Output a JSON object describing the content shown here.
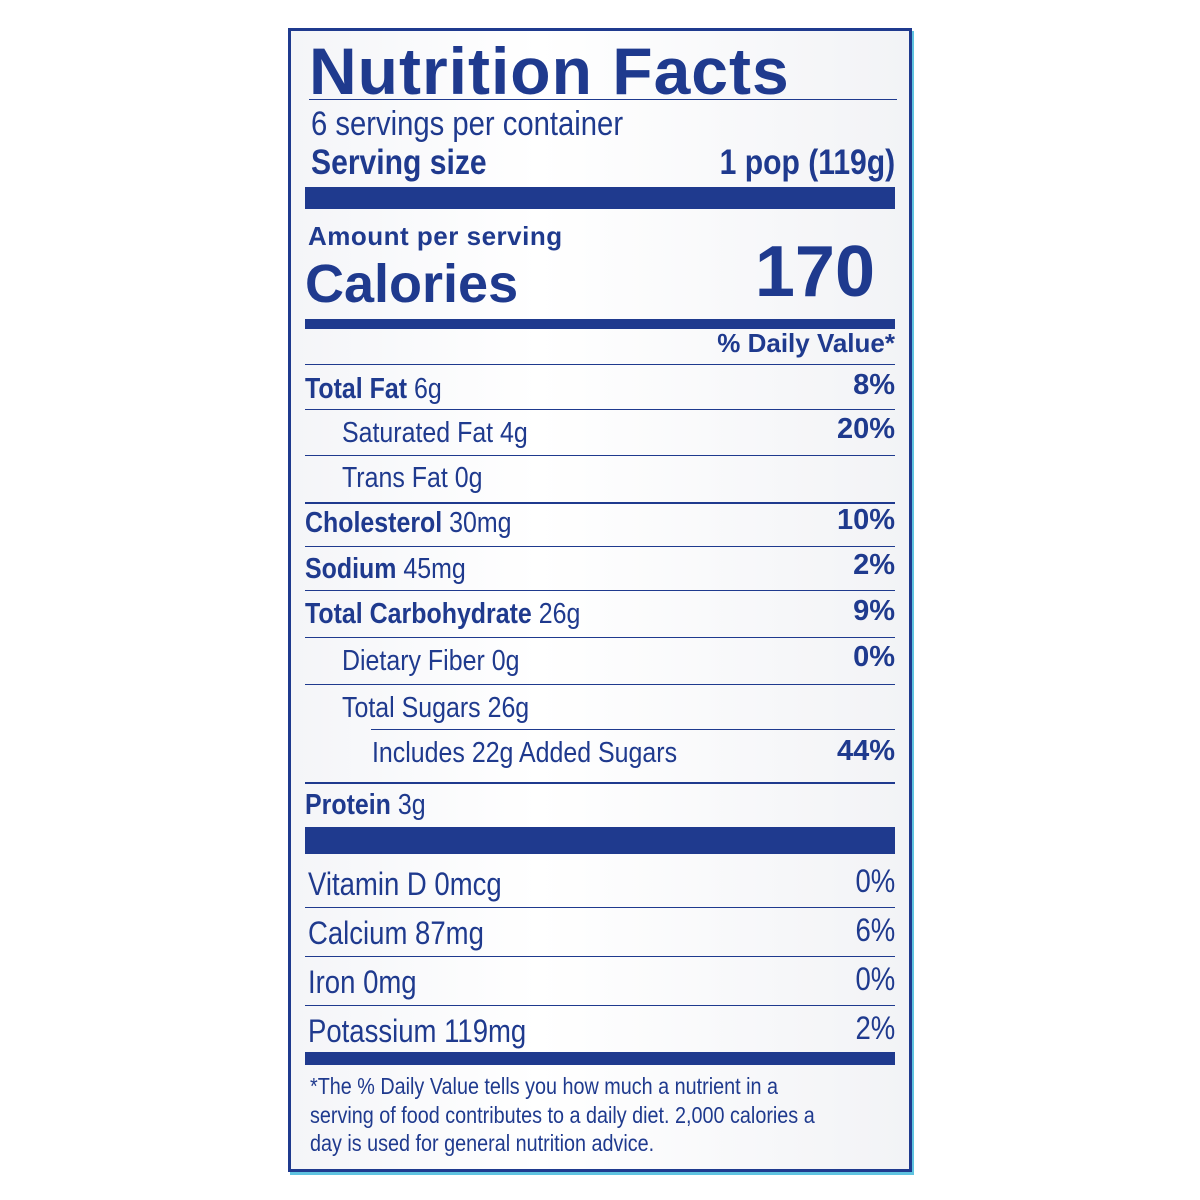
{
  "title": "Nutrition Facts",
  "servings_per_container": "6 servings per container",
  "serving_size": {
    "label": "Serving size",
    "value": "1 pop (119g)"
  },
  "amount_per_serving": "Amount per serving",
  "calories": {
    "label": "Calories",
    "value": "170"
  },
  "daily_value_header": "% Daily Value*",
  "nutrients": [
    {
      "name": "Total Fat",
      "amount": "6g",
      "dv": "8%"
    },
    {
      "name": "Saturated Fat",
      "amount": "4g",
      "dv": "20%"
    },
    {
      "name": "Trans Fat",
      "amount": "0g",
      "dv": ""
    },
    {
      "name": "Cholesterol",
      "amount": "30mg",
      "dv": "10%"
    },
    {
      "name": "Sodium",
      "amount": "45mg",
      "dv": "2%"
    },
    {
      "name": "Total Carbohydrate",
      "amount": "26g",
      "dv": "9%"
    },
    {
      "name": "Dietary Fiber",
      "amount": "0g",
      "dv": "0%"
    },
    {
      "name": "Total Sugars",
      "amount": "26g",
      "dv": ""
    },
    {
      "name": "Includes 22g Added Sugars",
      "amount": "",
      "dv": "44%"
    },
    {
      "name": "Protein",
      "amount": "3g",
      "dv": ""
    }
  ],
  "vitamins": [
    {
      "name": "Vitamin D",
      "amount": "0mcg",
      "dv": "0%"
    },
    {
      "name": "Calcium",
      "amount": "87mg",
      "dv": "6%"
    },
    {
      "name": "Iron",
      "amount": "0mg",
      "dv": "0%"
    },
    {
      "name": "Potassium",
      "amount": "119mg",
      "dv": "2%"
    }
  ],
  "footnote": [
    "*The % Daily Value tells you how much a nutrient in a",
    "serving of food contributes to a daily diet. 2,000 calories a",
    "day is used for general nutrition advice."
  ],
  "colors": {
    "ink": "#1f3a8e",
    "accent_edge": "#5fc3e0"
  }
}
